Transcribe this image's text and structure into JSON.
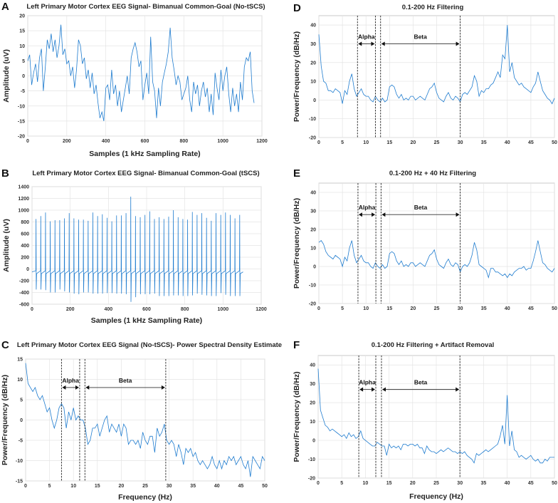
{
  "colors": {
    "line": "#1f7ccf",
    "grid": "#e4e4e4",
    "box": "#bdbdbd",
    "dash": "#222222"
  },
  "chart_data": [
    {
      "id": "A",
      "panel_label": "A",
      "type": "line",
      "title": "Left Primary Motor Cortex EEG Signal- Bimanual Common-Goal (No-tSCS)",
      "xlabel": "Samples (1 kHz Sampling Rate)",
      "ylabel": "Amplitude (uV)",
      "xlim": [
        0,
        1200
      ],
      "ylim": [
        -20,
        20
      ],
      "xticks": [
        0,
        200,
        400,
        600,
        800,
        1000,
        1200
      ],
      "yticks": [
        -20,
        -15,
        -10,
        -5,
        0,
        5,
        10,
        15,
        20
      ],
      "x_start": 0,
      "x_step": 10,
      "y": [
        5,
        7,
        -3,
        1,
        4,
        -2,
        6,
        9,
        -5,
        3,
        12,
        9,
        14,
        8,
        12,
        6,
        10,
        17,
        7,
        9,
        4,
        5,
        0,
        3,
        -4,
        2,
        12,
        10,
        4,
        6,
        -1,
        2,
        -4,
        1,
        -6,
        -3,
        -9,
        -14,
        -12,
        -15,
        -4,
        -3,
        -8,
        2,
        -6,
        -3,
        -10,
        -5,
        -12,
        -8,
        -4,
        0,
        -6,
        6,
        9,
        11,
        8,
        3,
        5,
        -8,
        -3,
        1,
        -6,
        13,
        -2,
        -5,
        -14,
        -4,
        -10,
        -2,
        1,
        4,
        8,
        16,
        6,
        2,
        -3,
        0,
        -2,
        -8,
        -6,
        -4,
        0,
        -8,
        -12,
        -2,
        -6,
        -3,
        -10,
        -5,
        -2,
        -7,
        -4,
        -12,
        -6,
        -13,
        1,
        -4,
        -8,
        2,
        -5,
        0,
        3,
        -6,
        -12,
        -4,
        -10,
        -6,
        -12,
        -2,
        -8,
        3,
        6,
        5,
        8,
        -5,
        -9
      ]
    },
    {
      "id": "B",
      "panel_label": "B",
      "type": "line",
      "title": "Left Primary Motor Cortex EEG Signal- Bimanual Common-Goal (tSCS)",
      "xlabel": "Samples (1 kHz Sampling Rate)",
      "ylabel": "Amplitude (uV)",
      "xlim": [
        0,
        1200
      ],
      "ylim": [
        -600,
        1400
      ],
      "xticks": [
        0,
        200,
        400,
        600,
        800,
        1000,
        1200
      ],
      "yticks": [
        -600,
        -400,
        -200,
        0,
        200,
        400,
        600,
        800,
        1000,
        1200,
        1400
      ],
      "spike_start": 21,
      "spike_period": 24.8,
      "signal_end": 1105,
      "baseline": -50,
      "spike_peaks": [
        850,
        900,
        960,
        810,
        830,
        830,
        860,
        950,
        860,
        840,
        840,
        820,
        960,
        900,
        930,
        870,
        810,
        910,
        910,
        950,
        1230,
        900,
        880,
        920,
        980,
        850,
        880,
        850,
        890,
        1000,
        880,
        850,
        840,
        970,
        920,
        950,
        870,
        820,
        950,
        920,
        960,
        920,
        860,
        920
      ],
      "spike_troughs": [
        -350,
        -350,
        -360,
        -400,
        -400,
        -350,
        -380,
        -400,
        -420,
        -430,
        -400,
        -400,
        -420,
        -420,
        -420,
        -410,
        -410,
        -420,
        -420,
        -430,
        -560,
        -480,
        -430,
        -430,
        -430,
        -420,
        -460,
        -460,
        -460,
        -450,
        -450,
        -460,
        -460,
        -450,
        -420,
        -440,
        -450,
        -460,
        -460,
        -410,
        -440,
        -460,
        -460,
        -460
      ]
    },
    {
      "id": "C",
      "panel_label": "C",
      "type": "line",
      "title": "Left Primary Motor Cortex EEG Signal (No-tSCS)- Power Spectral Density Estimate",
      "xlabel": "Frequency (Hz)",
      "ylabel": "Power/Frequency (dB/Hz)",
      "xlim": [
        0,
        50
      ],
      "ylim": [
        -15,
        15
      ],
      "xticks": [
        0,
        5,
        10,
        15,
        20,
        25,
        30,
        35,
        40,
        45,
        50
      ],
      "yticks": [
        -15,
        -10,
        -5,
        0,
        5,
        10,
        15
      ],
      "bands": {
        "alpha_label": "Alpha",
        "beta_label": "Beta",
        "alpha": [
          7.5,
          11.3
        ],
        "beta": [
          12.4,
          29.3
        ],
        "arrow_y": 8
      },
      "x_start": 0,
      "x_step": 0.5,
      "y": [
        14,
        9,
        8,
        7,
        8,
        6,
        5,
        6,
        4,
        2,
        3,
        0,
        -2,
        0,
        3,
        4,
        3,
        -2,
        2,
        0,
        3,
        0,
        1,
        0,
        0,
        -2,
        -6,
        -5,
        -2,
        -2,
        -1,
        -4,
        -2,
        0,
        1,
        -3,
        -1,
        -2,
        -3,
        -1,
        -4,
        -1,
        -2,
        -6,
        -5,
        -5,
        -6,
        -5,
        -7,
        -3,
        -5,
        -6,
        -4,
        -4,
        -8,
        -2,
        -4,
        -3,
        -1,
        -5,
        -6,
        -5,
        -6,
        -9,
        -6,
        -8,
        -11,
        -7,
        -8,
        -7,
        -9,
        -8,
        -10,
        -11,
        -10,
        -11,
        -12,
        -11,
        -9,
        -11,
        -12,
        -10,
        -12,
        -10,
        -11,
        -9,
        -10,
        -9,
        -11,
        -10,
        -9,
        -11,
        -12,
        -10,
        -14,
        -9,
        -10,
        -11,
        -12,
        -9,
        -10
      ]
    },
    {
      "id": "D",
      "panel_label": "D",
      "type": "line",
      "title": "0.1-200 Hz Filtering",
      "xlabel": "",
      "ylabel": "Power/Frequency (dB/Hz)",
      "xlim": [
        0,
        50
      ],
      "ylim": [
        -20,
        45
      ],
      "xticks": [
        0,
        5,
        10,
        15,
        20,
        25,
        30,
        35,
        40,
        45,
        50
      ],
      "yticks": [
        -20,
        -10,
        0,
        10,
        20,
        30,
        40
      ],
      "bands": {
        "alpha_label": "Alpha",
        "beta_label": "Beta",
        "alpha": [
          8.2,
          12.0
        ],
        "beta": [
          13.1,
          30.0
        ],
        "arrow_y": 30
      },
      "x_start": 0,
      "x_step": 0.5,
      "y": [
        35,
        18,
        10,
        9,
        5,
        5,
        4,
        6,
        5,
        4,
        -2,
        5,
        3,
        10,
        14,
        6,
        2,
        4,
        6,
        3,
        2,
        2,
        0,
        -1,
        2,
        0,
        -1,
        1,
        -1,
        0,
        7,
        8,
        7,
        3,
        1,
        3,
        0,
        1,
        0,
        2,
        2,
        0,
        1,
        2,
        1,
        0,
        3,
        6,
        7,
        9,
        4,
        1,
        0,
        -1,
        2,
        4,
        1,
        0,
        2,
        1,
        -1,
        3,
        4,
        3,
        5,
        7,
        13,
        10,
        2,
        5,
        4,
        6,
        6,
        8,
        9,
        12,
        15,
        12,
        24,
        22,
        40,
        15,
        20,
        12,
        10,
        8,
        9,
        7,
        6,
        5,
        4,
        7,
        9,
        15,
        10,
        5,
        3,
        1,
        0,
        -2,
        1
      ]
    },
    {
      "id": "E",
      "panel_label": "E",
      "type": "line",
      "title": "0.1-200 Hz + 40 Hz Filtering",
      "xlabel": "",
      "ylabel": "Power/Frequency (dB/Hz)",
      "xlim": [
        0,
        50
      ],
      "ylim": [
        -20,
        45
      ],
      "xticks": [
        0,
        5,
        10,
        15,
        20,
        25,
        30,
        35,
        40,
        45,
        50
      ],
      "yticks": [
        -20,
        -10,
        0,
        10,
        20,
        30,
        40
      ],
      "bands": {
        "alpha_label": "Alpha",
        "beta_label": "Beta",
        "alpha": [
          8.3,
          12.1
        ],
        "beta": [
          13.2,
          30.0
        ],
        "arrow_y": 28
      },
      "x_start": 0,
      "x_step": 0.5,
      "y": [
        13,
        14,
        12,
        8,
        6,
        5,
        4,
        6,
        5,
        4,
        0,
        5,
        3,
        10,
        14,
        6,
        2,
        4,
        6,
        3,
        2,
        2,
        0,
        -1,
        2,
        0,
        -1,
        1,
        -1,
        0,
        7,
        8,
        7,
        3,
        1,
        3,
        0,
        1,
        0,
        2,
        2,
        0,
        1,
        2,
        1,
        0,
        3,
        6,
        7,
        9,
        4,
        1,
        0,
        -1,
        2,
        4,
        1,
        0,
        2,
        1,
        -3,
        0,
        1,
        0,
        2,
        6,
        13,
        9,
        1,
        0,
        -1,
        -2,
        -6,
        -1,
        -1,
        -3,
        -3,
        -4,
        -5,
        -4,
        -6,
        -4,
        -5,
        -3,
        -2,
        -1,
        -1,
        0,
        -2,
        -1,
        -1,
        3,
        8,
        14,
        8,
        2,
        1,
        -1,
        -2,
        -3,
        -1
      ]
    },
    {
      "id": "F",
      "panel_label": "F",
      "type": "line",
      "title": "0.1-200 Hz Filtering + Artifact Removal",
      "xlabel": "Frequency (Hz)",
      "ylabel": "Power/Frequency (dB/Hz)",
      "xlim": [
        0,
        50
      ],
      "ylim": [
        -20,
        45
      ],
      "xticks": [
        0,
        5,
        10,
        15,
        20,
        25,
        30,
        35,
        40,
        45,
        50
      ],
      "yticks": [
        -20,
        -10,
        0,
        10,
        20,
        30,
        40
      ],
      "bands": {
        "alpha_label": "Alpha",
        "beta_label": "Beta",
        "alpha": [
          8.6,
          12.2
        ],
        "beta": [
          13.4,
          30.0
        ],
        "arrow_y": 27
      },
      "x_start": 0,
      "x_step": 0.5,
      "y": [
        38,
        16,
        12,
        8,
        7,
        5,
        6,
        5,
        4,
        3,
        2,
        3,
        1,
        4,
        2,
        3,
        1,
        2,
        5,
        1,
        0,
        -1,
        -2,
        -3,
        -3,
        -1,
        -2,
        -3,
        -3,
        -8,
        -2,
        -4,
        -3,
        -4,
        -3,
        -5,
        -2,
        -2,
        -3,
        -2,
        -2,
        -3,
        -2,
        -4,
        -4,
        -7,
        -3,
        -5,
        -6,
        -6,
        -7,
        -6,
        -5,
        -6,
        -5,
        -4,
        -5,
        -6,
        -6,
        -7,
        -6,
        -7,
        -6,
        -8,
        -9,
        -10,
        -12,
        -7,
        -8,
        -7,
        -6,
        -5,
        -6,
        -5,
        -4,
        -3,
        -2,
        2,
        8,
        -2,
        24,
        -3,
        5,
        -5,
        -6,
        -9,
        -8,
        -9,
        -10,
        -9,
        -8,
        -10,
        -11,
        -10,
        -12,
        -12,
        -10,
        -11,
        -9,
        -9,
        -9
      ]
    }
  ]
}
